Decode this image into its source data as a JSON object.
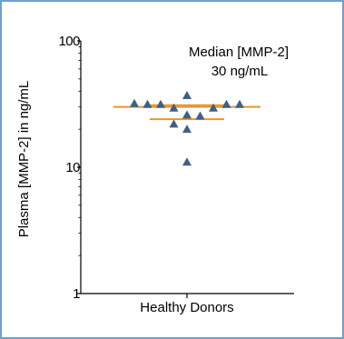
{
  "chart_data": {
    "type": "scatter",
    "ylabel": "Plasma [MMP-2] in ng/mL",
    "yscale": "log",
    "ylim": [
      1,
      100
    ],
    "y_ticks": [
      "1",
      "10",
      "100"
    ],
    "categories": [
      "Healthy Donors"
    ],
    "annotation_line1": "Median [MMP-2]",
    "annotation_line2": "30 ng/mL",
    "marker": "triangle",
    "marker_color": "#3f5f87",
    "line_color": "#e7962e",
    "median": 30,
    "interquartile": [
      24,
      31
    ],
    "points": [
      {
        "offset": -4,
        "y": 32
      },
      {
        "offset": -3,
        "y": 31.5
      },
      {
        "offset": -2,
        "y": 31.5
      },
      {
        "offset": -1,
        "y": 29.5
      },
      {
        "offset": -1,
        "y": 22
      },
      {
        "offset": 0,
        "y": 37
      },
      {
        "offset": 0,
        "y": 26
      },
      {
        "offset": 0,
        "y": 20
      },
      {
        "offset": 0,
        "y": 11
      },
      {
        "offset": 1,
        "y": 25.5
      },
      {
        "offset": 2,
        "y": 29.5
      },
      {
        "offset": 3,
        "y": 31.5
      },
      {
        "offset": 4,
        "y": 31.5
      }
    ]
  }
}
